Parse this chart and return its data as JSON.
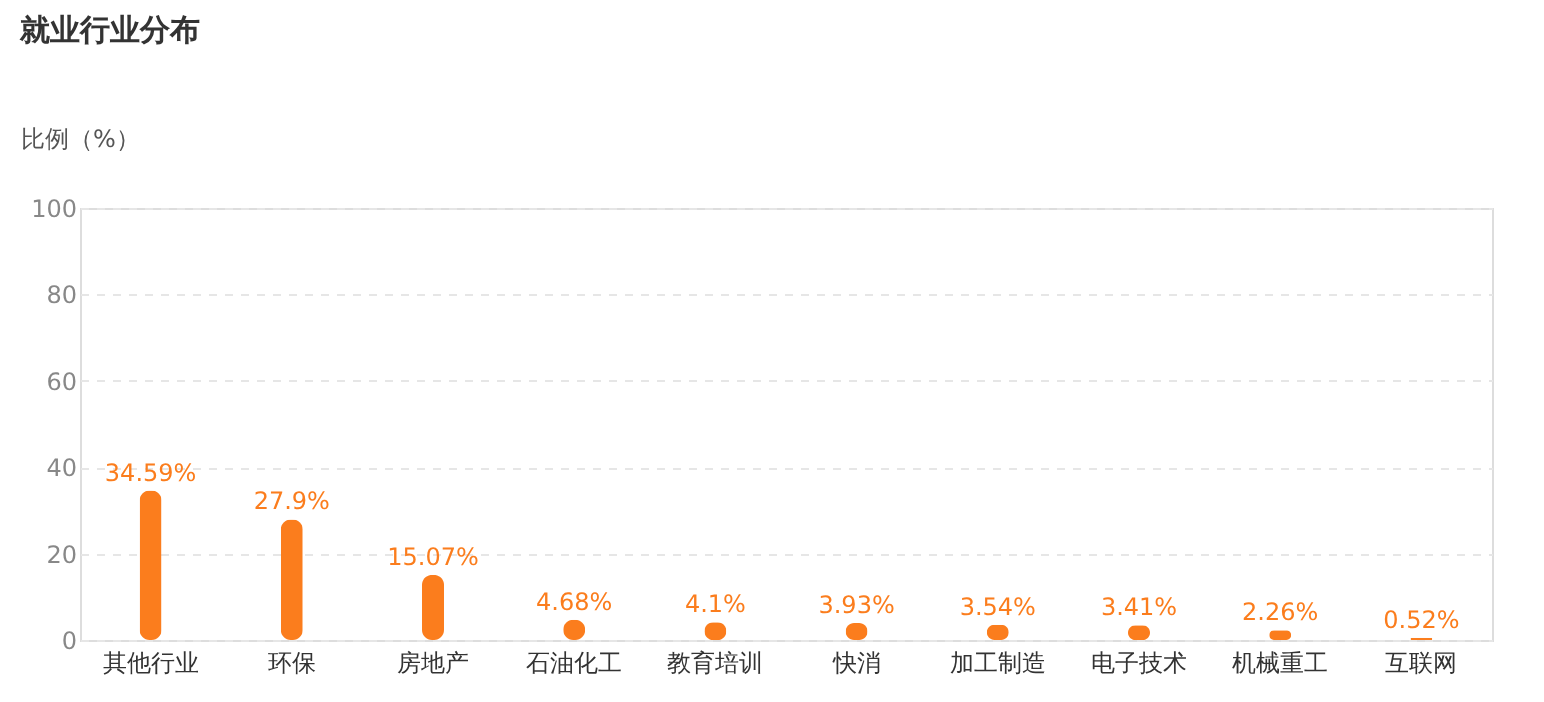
{
  "chart_data": {
    "type": "bar",
    "title": "就业行业分布",
    "ylabel": "比例（%）",
    "categories": [
      "其他行业",
      "环保",
      "房地产",
      "石油化工",
      "教育培训",
      "快消",
      "加工制造",
      "电子技术",
      "机械重工",
      "互联网"
    ],
    "values": [
      34.59,
      27.9,
      15.07,
      4.68,
      4.1,
      3.93,
      3.54,
      3.41,
      2.26,
      0.52
    ],
    "value_labels": [
      "34.59%",
      "27.9%",
      "15.07%",
      "4.68%",
      "4.1%",
      "3.93%",
      "3.54%",
      "3.41%",
      "2.26%",
      "0.52%"
    ],
    "color": "#fb7d1d",
    "ylim": [
      0,
      100
    ],
    "yticks": [
      0,
      20,
      40,
      60,
      80,
      100
    ],
    "grid": "y"
  }
}
